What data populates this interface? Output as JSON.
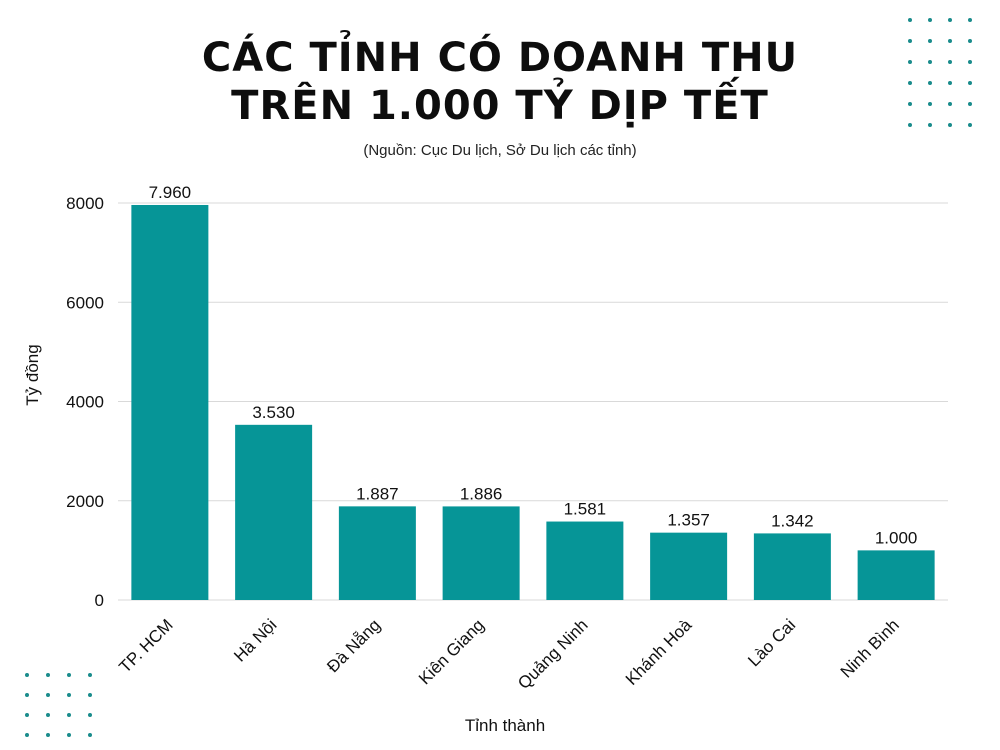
{
  "title_lines": [
    "CÁC TỈNH CÓ DOANH THU",
    "TRÊN 1.000 TỶ DỊP TẾT"
  ],
  "subtitle": "(Nguồn: Cục Du lịch, Sở Du lịch các tỉnh)",
  "colors": {
    "bar": "#069597",
    "grid": "#d9d9d9",
    "dots": "#1a8c8c"
  },
  "decorations": {
    "top_right_dots": "dot-grid-pattern",
    "bottom_left_dots": "dot-grid-pattern"
  },
  "chart_data": {
    "type": "bar",
    "categories": [
      "TP. HCM",
      "Hà Nội",
      "Đà Nẵng",
      "Kiên Giang",
      "Quảng Ninh",
      "Khánh Hoà",
      "Lào Cai",
      "Ninh Bình"
    ],
    "values": [
      7960,
      3530,
      1887,
      1886,
      1581,
      1357,
      1342,
      1000
    ],
    "data_labels": [
      "7.960",
      "3.530",
      "1.887",
      "1.886",
      "1.581",
      "1.357",
      "1.342",
      "1.000"
    ],
    "xlabel": "Tỉnh thành",
    "ylabel": "Tỷ đồng",
    "ylim": [
      0,
      8000
    ],
    "yticks": [
      0,
      2000,
      4000,
      6000,
      8000
    ],
    "grid": true,
    "legend": "none"
  }
}
